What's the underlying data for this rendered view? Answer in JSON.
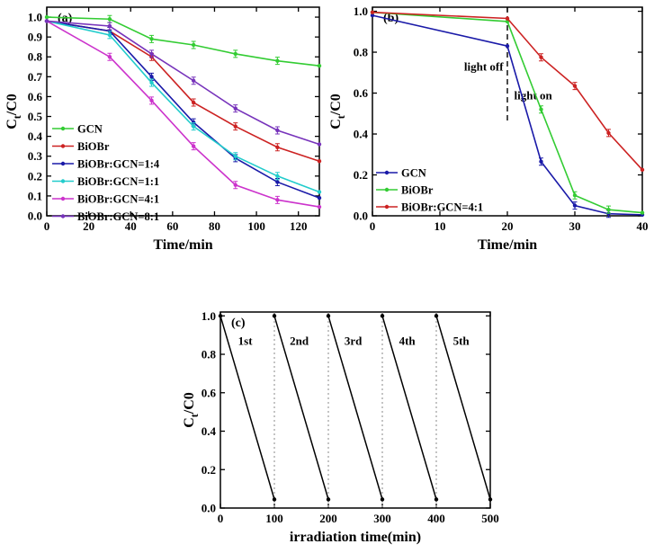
{
  "chart_data": [
    {
      "type": "line",
      "panel_label": "(a)",
      "xlabel": "Time/min",
      "ylabel": {
        "base": "C",
        "sub": "t",
        "rest": "/C0"
      },
      "xlim": [
        0,
        130
      ],
      "ylim": [
        0,
        1.05
      ],
      "xticks": [
        0,
        20,
        40,
        60,
        80,
        100,
        120
      ],
      "yticks": [
        0.0,
        0.1,
        0.2,
        0.3,
        0.4,
        0.5,
        0.6,
        0.7,
        0.8,
        0.9,
        1.0
      ],
      "x": [
        0,
        30,
        50,
        70,
        90,
        110,
        130
      ],
      "legend_position": "bottom-left",
      "series": [
        {
          "name": "GCN",
          "color": "#33cc33",
          "values": [
            1.0,
            0.99,
            0.89,
            0.86,
            0.815,
            0.78,
            0.755
          ]
        },
        {
          "name": "BiOBr",
          "color": "#cc2222",
          "values": [
            0.98,
            0.93,
            0.8,
            0.57,
            0.45,
            0.345,
            0.275
          ]
        },
        {
          "name": "BiOBr:GCN=1:4",
          "color": "#1a1aa8",
          "values": [
            0.98,
            0.93,
            0.7,
            0.47,
            0.29,
            0.17,
            0.09
          ]
        },
        {
          "name": "BiOBr:GCN=1:1",
          "color": "#22cccc",
          "values": [
            0.98,
            0.91,
            0.67,
            0.45,
            0.3,
            0.2,
            0.12
          ]
        },
        {
          "name": "BiOBr:GCN=4:1",
          "color": "#cc33cc",
          "values": [
            0.98,
            0.8,
            0.58,
            0.35,
            0.155,
            0.08,
            0.045
          ]
        },
        {
          "name": "BiOBr:GCN=8:1",
          "color": "#7733bb",
          "values": [
            0.98,
            0.955,
            0.815,
            0.68,
            0.54,
            0.43,
            0.36
          ]
        }
      ]
    },
    {
      "type": "line",
      "panel_label": "(b)",
      "xlabel": "Time/min",
      "ylabel": {
        "base": "C",
        "sub": "t",
        "rest": "/C0"
      },
      "xlim": [
        0,
        40
      ],
      "ylim": [
        0,
        1.02
      ],
      "xticks": [
        0,
        10,
        20,
        30,
        40
      ],
      "yticks": [
        0.0,
        0.2,
        0.4,
        0.6,
        0.8,
        1.0
      ],
      "legend_position": "bottom-left",
      "annotations": [
        {
          "text": "light off",
          "x": 16.5,
          "y": 0.71
        },
        {
          "text": "light on",
          "x": 21,
          "y": 0.57
        }
      ],
      "divider_x": 20,
      "series": [
        {
          "name": "GCN",
          "color": "#1a1aa8",
          "x": [
            0,
            20,
            25,
            30,
            35,
            40
          ],
          "values": [
            0.98,
            0.83,
            0.265,
            0.05,
            0.01,
            0.005
          ]
        },
        {
          "name": "BiOBr",
          "color": "#33cc33",
          "x": [
            0,
            20,
            25,
            30,
            35,
            40
          ],
          "values": [
            0.995,
            0.95,
            0.52,
            0.1,
            0.03,
            0.015
          ]
        },
        {
          "name": "BiOBr:GCN=4:1",
          "color": "#cc2222",
          "x": [
            0,
            20,
            25,
            30,
            35,
            40
          ],
          "values": [
            0.995,
            0.965,
            0.775,
            0.635,
            0.405,
            0.225
          ]
        }
      ]
    },
    {
      "type": "line",
      "panel_label": "(c)",
      "xlabel": "irradiation time(min)",
      "ylabel": {
        "base": "C",
        "sub": "t",
        "rest": "/C0"
      },
      "xlim": [
        0,
        500
      ],
      "ylim": [
        0,
        1.02
      ],
      "xticks": [
        0,
        100,
        200,
        300,
        400,
        500
      ],
      "yticks": [
        0.0,
        0.2,
        0.4,
        0.6,
        0.8,
        1.0
      ],
      "cycle_labels": [
        "1st",
        "2nd",
        "3rd",
        "4th",
        "5th"
      ],
      "cycles": [
        {
          "start": 0,
          "end": 100,
          "c0": 1.0,
          "c1": 0.045
        },
        {
          "start": 100,
          "end": 200,
          "c0": 1.0,
          "c1": 0.045
        },
        {
          "start": 200,
          "end": 300,
          "c0": 1.0,
          "c1": 0.045
        },
        {
          "start": 300,
          "end": 400,
          "c0": 1.0,
          "c1": 0.045
        },
        {
          "start": 400,
          "end": 500,
          "c0": 1.0,
          "c1": 0.045
        }
      ],
      "dividers_x": [
        100,
        200,
        300,
        400
      ],
      "color": "#000000"
    }
  ]
}
